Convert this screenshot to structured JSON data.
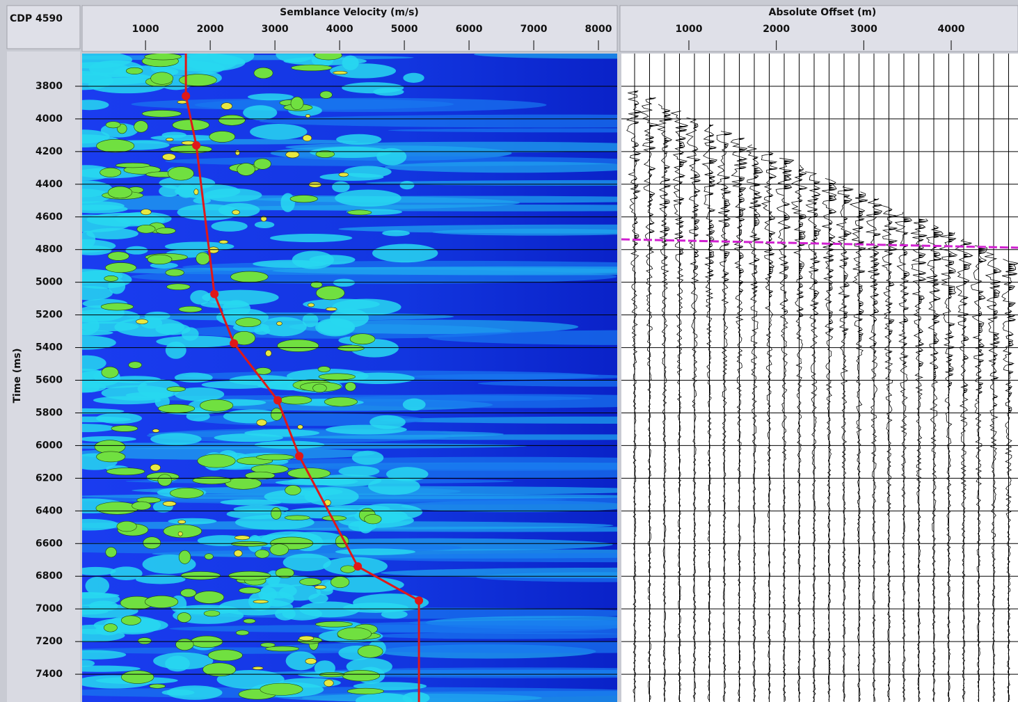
{
  "header": {
    "cdp": "CDP 4590"
  },
  "chart_data": [
    {
      "type": "semblance",
      "title": "Semblance Velocity (m/s)",
      "y_label": "Time (ms)",
      "xlim": [
        20,
        8290
      ],
      "xticks": [
        1000,
        2000,
        3000,
        4000,
        5000,
        6000,
        7000,
        8000
      ],
      "ylim": [
        3600,
        7570
      ],
      "yticks": [
        3800,
        4000,
        4200,
        4400,
        4600,
        4800,
        5000,
        5200,
        5400,
        5600,
        5800,
        6000,
        6200,
        6400,
        6600,
        6800,
        7000,
        7200,
        7400
      ],
      "grid": true,
      "series": [
        {
          "color": "#e01818",
          "x": [
            1624,
            1785,
            2065,
            2366,
            3043,
            3376,
            4280,
            5226
          ],
          "values": [
            3860,
            4162,
            5072,
            5374,
            5723,
            6064,
            6740,
            6949
          ]
        }
      ]
    },
    {
      "type": "gather",
      "title": "Absolute Offset (m)",
      "xlim": [
        228,
        4764
      ],
      "xticks": [
        1000,
        2000,
        3000,
        4000
      ],
      "ylim": [
        3600,
        7570
      ],
      "grid": true
    }
  ]
}
